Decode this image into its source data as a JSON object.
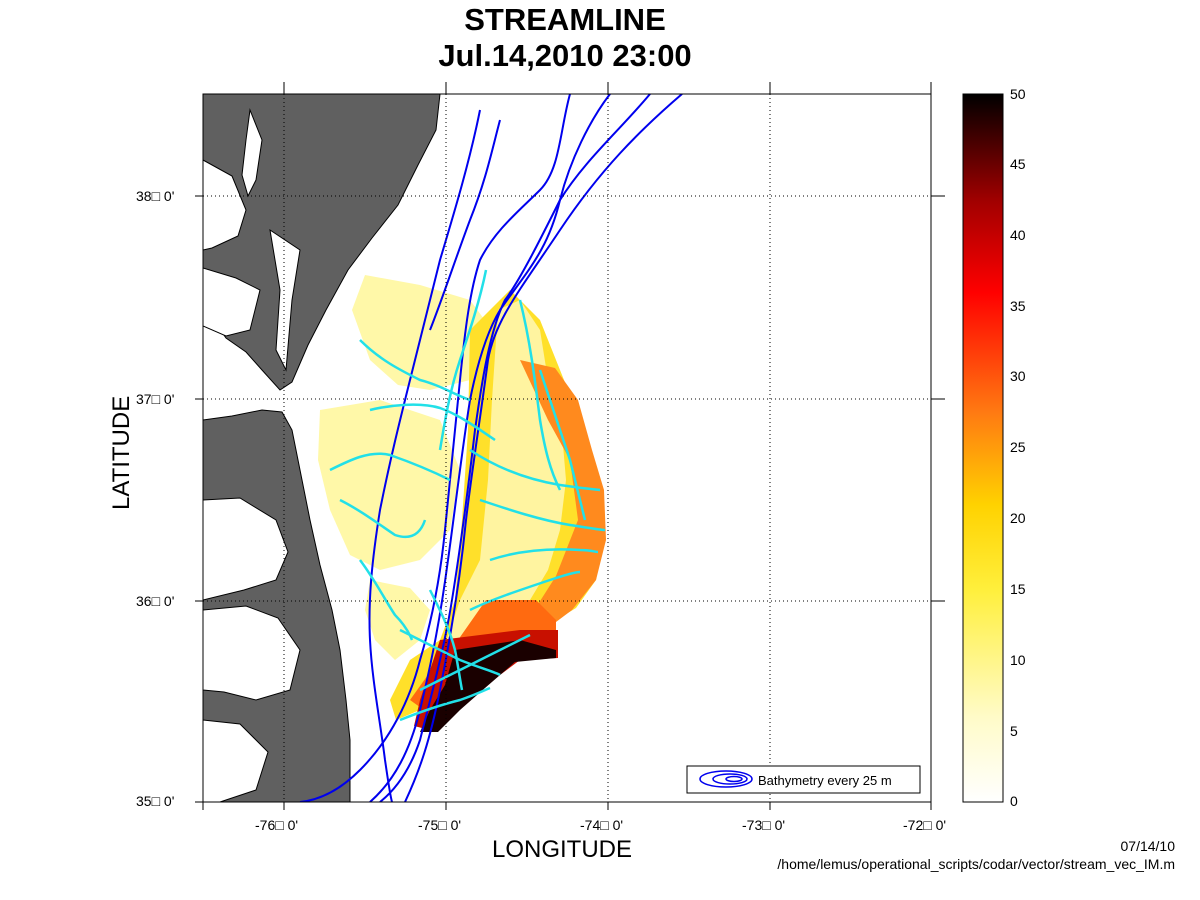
{
  "title": "STREAMLINE",
  "subtitle": "Jul.14,2010 23:00",
  "xlabel": "LONGITUDE",
  "ylabel": "LATITUDE",
  "x_ticks": [
    "-76□ 0'",
    "-75□ 0'",
    "-74□ 0'",
    "-73□ 0'",
    "-72□ 0'"
  ],
  "y_ticks": [
    "38□ 0'",
    "37□ 0'",
    "36□ 0'",
    "35□ 0'"
  ],
  "colorbar": {
    "min": 0,
    "max": 50,
    "ticks": [
      "50",
      "45",
      "40",
      "35",
      "30",
      "25",
      "20",
      "15",
      "10",
      "5",
      "0"
    ]
  },
  "legend": {
    "label": "Bathymetry every 25 m"
  },
  "footer": {
    "date": "07/14/10",
    "path": "/home/lemus/operational_scripts/codar/vector/stream_vec_IM.m"
  },
  "colors": {
    "land": "#606060",
    "bathymetry": "#0000ee",
    "streamline": "#22e0e8"
  },
  "map_extent": {
    "lon": [
      -76.5,
      -72
    ],
    "lat": [
      35,
      38.5
    ]
  }
}
